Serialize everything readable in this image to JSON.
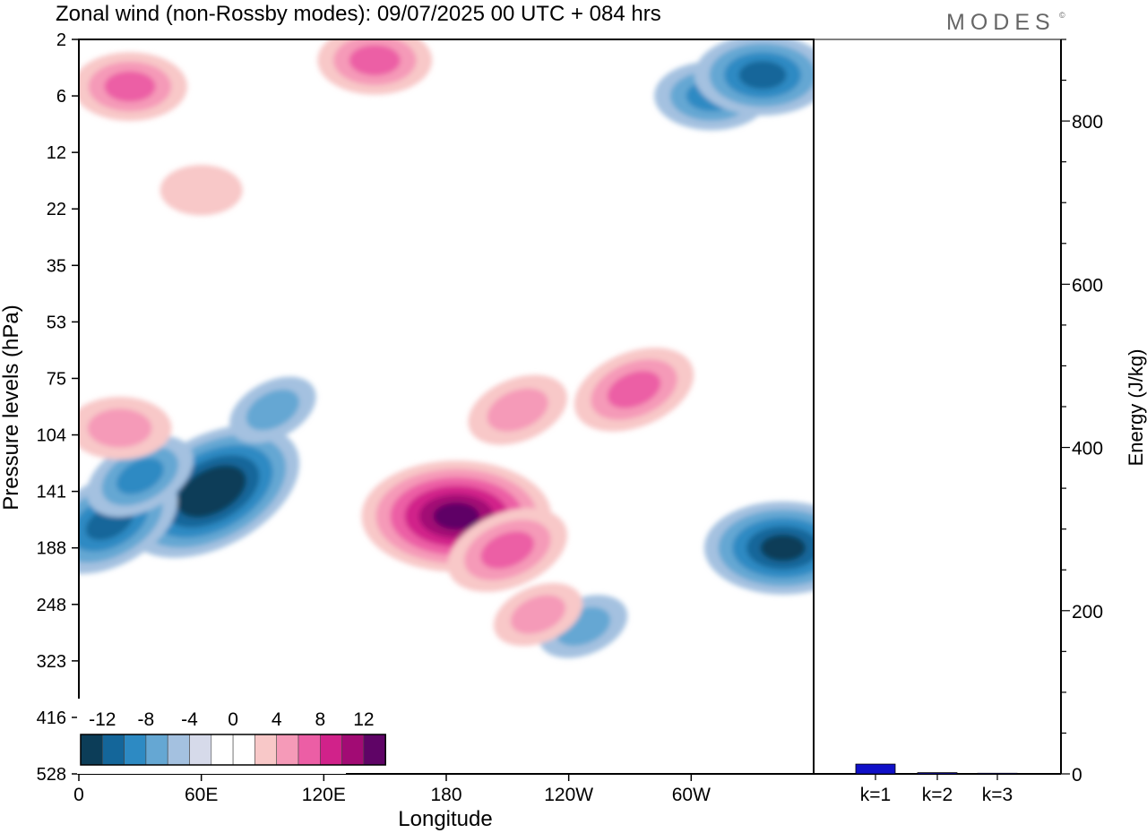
{
  "header": {
    "title": "Zonal wind (non-Rossby modes):  09/07/2025  00 UTC  + 084 hrs",
    "brand": "MODES",
    "brand_mark": "©"
  },
  "colors": {
    "neg": [
      "#0c3d58",
      "#14669a",
      "#2d8ac3",
      "#65a7d3",
      "#a4c1e0",
      "#d6daea"
    ],
    "neutral": "#ffffff",
    "pos": [
      "#f8c8c8",
      "#f59ab8",
      "#ec5ea5",
      "#d1228a",
      "#a20b74",
      "#5f0466"
    ],
    "bar": "#1010c8"
  },
  "chart_data": [
    {
      "type": "heatmap",
      "title": "Zonal wind (non-Rossby modes):  09/07/2025  00 UTC  + 084 hrs",
      "xlabel": "Longitude",
      "ylabel": "Pressure levels (hPa)",
      "x_ticks": [
        "0",
        "60E",
        "120E",
        "180",
        "120W",
        "60W"
      ],
      "y_ticks": [
        "2",
        "6",
        "12",
        "22",
        "35",
        "53",
        "75",
        "104",
        "141",
        "188",
        "248",
        "323",
        "416",
        "528"
      ],
      "y_order": "top-to-bottom",
      "legend": {
        "position": "bottom-left",
        "labels": [
          "-12",
          "-8",
          "-4",
          "0",
          "4",
          "8",
          "12"
        ],
        "boundaries": [
          -12,
          -10,
          -8,
          -6,
          -4,
          -2,
          2,
          4,
          6,
          8,
          10,
          12
        ]
      },
      "features": [
        {
          "lon": 65,
          "level": 141,
          "value": -13
        },
        {
          "lon": 15,
          "level": 165,
          "value": -9
        },
        {
          "lon": 30,
          "level": 130,
          "value": -6
        },
        {
          "lon": 95,
          "level": 90,
          "value": -4
        },
        {
          "lon": 345,
          "level": 188,
          "value": -10
        },
        {
          "lon": 247,
          "level": 275,
          "value": -4
        },
        {
          "lon": 310,
          "level": 6,
          "value": -6
        },
        {
          "lon": 335,
          "level": 4,
          "value": -8
        },
        {
          "lon": 185,
          "level": 160,
          "value": 13
        },
        {
          "lon": 210,
          "level": 190,
          "value": 7
        },
        {
          "lon": 215,
          "level": 90,
          "value": 5
        },
        {
          "lon": 272,
          "level": 80,
          "value": 7
        },
        {
          "lon": 20,
          "level": 100,
          "value": 5
        },
        {
          "lon": 145,
          "level": 3,
          "value": 6
        },
        {
          "lon": 25,
          "level": 5,
          "value": 6
        },
        {
          "lon": 225,
          "level": 260,
          "value": 4
        },
        {
          "lon": 60,
          "level": 18,
          "value": 3
        }
      ]
    },
    {
      "type": "bar",
      "categories": [
        "k=1",
        "k=2",
        "k=3"
      ],
      "values": [
        12,
        1.5,
        0.8
      ],
      "ylabel": "Energy (J/kg)",
      "ylim": [
        0,
        900
      ],
      "y_ticks": [
        0,
        200,
        400,
        600,
        800
      ]
    }
  ]
}
